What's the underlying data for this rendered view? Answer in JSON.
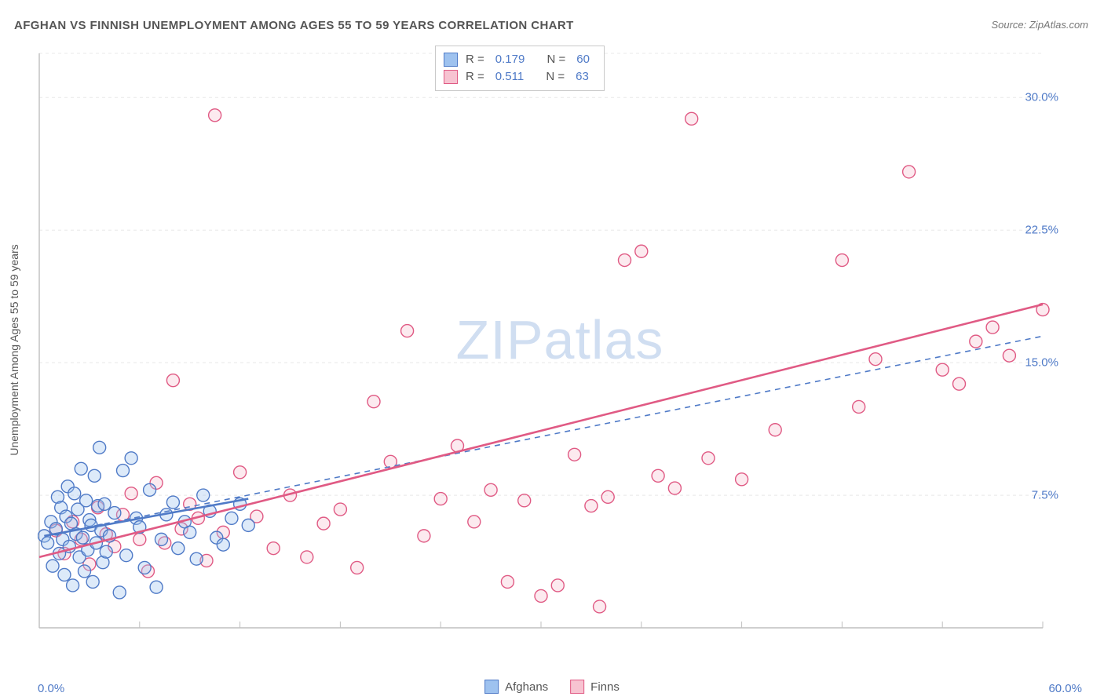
{
  "title": "AFGHAN VS FINNISH UNEMPLOYMENT AMONG AGES 55 TO 59 YEARS CORRELATION CHART",
  "source_label": "Source: ZipAtlas.com",
  "ylabel": "Unemployment Among Ages 55 to 59 years",
  "watermark_a": "ZIP",
  "watermark_b": "atlas",
  "chart": {
    "type": "scatter",
    "xlim": [
      0,
      60
    ],
    "ylim": [
      0,
      32.5
    ],
    "x_min_label": "0.0%",
    "x_max_label": "60.0%",
    "y_ticks": [
      7.5,
      15.0,
      22.5,
      30.0
    ],
    "y_tick_labels": [
      "7.5%",
      "15.0%",
      "22.5%",
      "30.0%"
    ],
    "x_minor_ticks": [
      6,
      12,
      18,
      24,
      30,
      36,
      42,
      48,
      54,
      60
    ],
    "grid_color": "#e8e8e8",
    "grid_dash": "4 4",
    "axis_color": "#bfbfbf",
    "background_color": "#ffffff",
    "marker_radius": 8,
    "marker_stroke_width": 1.4,
    "marker_fill_opacity": 0.35,
    "line_width_solid": 2.6,
    "line_width_dash": 1.6,
    "series": {
      "afghans": {
        "label": "Afghans",
        "fill": "#9ec2ef",
        "stroke": "#4f7ac7",
        "R_label": "R =",
        "R": "0.179",
        "N_label": "N =",
        "N": "60",
        "points": [
          [
            0.3,
            5.2
          ],
          [
            0.5,
            4.8
          ],
          [
            0.7,
            6.0
          ],
          [
            0.8,
            3.5
          ],
          [
            1.0,
            5.6
          ],
          [
            1.1,
            7.4
          ],
          [
            1.2,
            4.2
          ],
          [
            1.3,
            6.8
          ],
          [
            1.4,
            5.0
          ],
          [
            1.5,
            3.0
          ],
          [
            1.6,
            6.3
          ],
          [
            1.7,
            8.0
          ],
          [
            1.8,
            4.6
          ],
          [
            1.9,
            5.9
          ],
          [
            2.0,
            2.4
          ],
          [
            2.1,
            7.6
          ],
          [
            2.2,
            5.3
          ],
          [
            2.3,
            6.7
          ],
          [
            2.4,
            4.0
          ],
          [
            2.5,
            9.0
          ],
          [
            2.6,
            5.1
          ],
          [
            2.7,
            3.2
          ],
          [
            2.8,
            7.2
          ],
          [
            2.9,
            4.4
          ],
          [
            3.0,
            6.1
          ],
          [
            3.1,
            5.8
          ],
          [
            3.2,
            2.6
          ],
          [
            3.3,
            8.6
          ],
          [
            3.4,
            4.8
          ],
          [
            3.5,
            6.9
          ],
          [
            3.6,
            10.2
          ],
          [
            3.7,
            5.5
          ],
          [
            3.8,
            3.7
          ],
          [
            3.9,
            7.0
          ],
          [
            4.0,
            4.3
          ],
          [
            4.2,
            5.2
          ],
          [
            4.5,
            6.5
          ],
          [
            4.8,
            2.0
          ],
          [
            5.0,
            8.9
          ],
          [
            5.2,
            4.1
          ],
          [
            5.5,
            9.6
          ],
          [
            5.8,
            6.2
          ],
          [
            6.0,
            5.7
          ],
          [
            6.3,
            3.4
          ],
          [
            6.6,
            7.8
          ],
          [
            7.0,
            2.3
          ],
          [
            7.3,
            5.0
          ],
          [
            7.6,
            6.4
          ],
          [
            8.0,
            7.1
          ],
          [
            8.3,
            4.5
          ],
          [
            8.7,
            6.0
          ],
          [
            9.0,
            5.4
          ],
          [
            9.4,
            3.9
          ],
          [
            9.8,
            7.5
          ],
          [
            10.2,
            6.6
          ],
          [
            10.6,
            5.1
          ],
          [
            11.0,
            4.7
          ],
          [
            11.5,
            6.2
          ],
          [
            12.0,
            7.0
          ],
          [
            12.5,
            5.8
          ]
        ],
        "fit_solid": {
          "x1": 0.3,
          "y1": 5.2,
          "x2": 12.5,
          "y2": 7.3
        },
        "fit_dash": {
          "x1": 0.3,
          "y1": 5.2,
          "x2": 60.0,
          "y2": 16.5
        }
      },
      "finns": {
        "label": "Finns",
        "fill": "#f7c3d1",
        "stroke": "#e05a84",
        "R_label": "R =",
        "R": "0.511",
        "N_label": "N =",
        "N": "63",
        "points": [
          [
            1.0,
            5.5
          ],
          [
            1.5,
            4.2
          ],
          [
            2.0,
            6.0
          ],
          [
            2.5,
            5.0
          ],
          [
            3.0,
            3.6
          ],
          [
            3.5,
            6.8
          ],
          [
            4.0,
            5.3
          ],
          [
            4.5,
            4.6
          ],
          [
            5.0,
            6.4
          ],
          [
            5.5,
            7.6
          ],
          [
            6.0,
            5.0
          ],
          [
            6.5,
            3.2
          ],
          [
            7.0,
            8.2
          ],
          [
            7.5,
            4.8
          ],
          [
            8.0,
            14.0
          ],
          [
            8.5,
            5.6
          ],
          [
            9.0,
            7.0
          ],
          [
            9.5,
            6.2
          ],
          [
            10.0,
            3.8
          ],
          [
            10.5,
            29.0
          ],
          [
            11.0,
            5.4
          ],
          [
            12.0,
            8.8
          ],
          [
            13.0,
            6.3
          ],
          [
            14.0,
            4.5
          ],
          [
            15.0,
            7.5
          ],
          [
            16.0,
            4.0
          ],
          [
            17.0,
            5.9
          ],
          [
            18.0,
            6.7
          ],
          [
            19.0,
            3.4
          ],
          [
            20.0,
            12.8
          ],
          [
            21.0,
            9.4
          ],
          [
            22.0,
            16.8
          ],
          [
            23.0,
            5.2
          ],
          [
            24.0,
            7.3
          ],
          [
            25.0,
            10.3
          ],
          [
            26.0,
            6.0
          ],
          [
            27.0,
            7.8
          ],
          [
            28.0,
            2.6
          ],
          [
            29.0,
            7.2
          ],
          [
            30.0,
            1.8
          ],
          [
            31.0,
            2.4
          ],
          [
            32.0,
            9.8
          ],
          [
            33.0,
            6.9
          ],
          [
            33.5,
            1.2
          ],
          [
            34.0,
            7.4
          ],
          [
            35.0,
            20.8
          ],
          [
            36.0,
            21.3
          ],
          [
            37.0,
            8.6
          ],
          [
            38.0,
            7.9
          ],
          [
            39.0,
            28.8
          ],
          [
            40.0,
            9.6
          ],
          [
            42.0,
            8.4
          ],
          [
            44.0,
            11.2
          ],
          [
            48.0,
            20.8
          ],
          [
            49.0,
            12.5
          ],
          [
            50.0,
            15.2
          ],
          [
            52.0,
            25.8
          ],
          [
            54.0,
            14.6
          ],
          [
            55.0,
            13.8
          ],
          [
            56.0,
            16.2
          ],
          [
            57.0,
            17.0
          ],
          [
            58.0,
            15.4
          ],
          [
            60.0,
            18.0
          ]
        ],
        "fit_solid": {
          "x1": 0.0,
          "y1": 4.0,
          "x2": 60.0,
          "y2": 18.3
        }
      }
    }
  }
}
